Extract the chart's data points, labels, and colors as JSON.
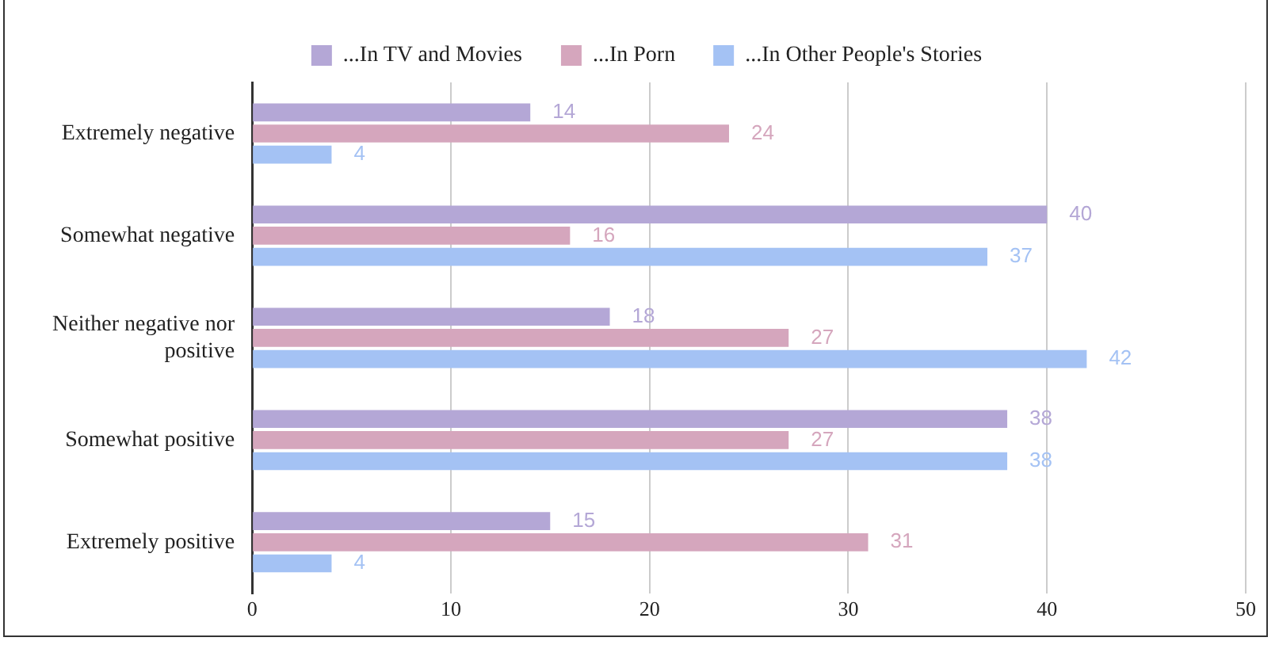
{
  "chart_data": {
    "type": "bar",
    "orientation": "horizontal",
    "categories": [
      "Extremely negative",
      "Somewhat negative",
      "Neither negative nor positive",
      "Somewhat positive",
      "Extremely positive"
    ],
    "series": [
      {
        "name": "...In TV and Movies",
        "color": "#b4a7d6",
        "values": [
          14,
          40,
          18,
          38,
          15
        ]
      },
      {
        "name": "...In Porn",
        "color": "#d5a6bd",
        "values": [
          24,
          16,
          27,
          27,
          31
        ]
      },
      {
        "name": "...In Other People's Stories",
        "color": "#a4c2f4",
        "values": [
          4,
          37,
          42,
          38,
          4
        ]
      }
    ],
    "xlim": [
      0,
      50
    ],
    "xticks": [
      0,
      10,
      20,
      30,
      40,
      50
    ],
    "grid": "x",
    "legend": "top",
    "data_labels": true
  }
}
